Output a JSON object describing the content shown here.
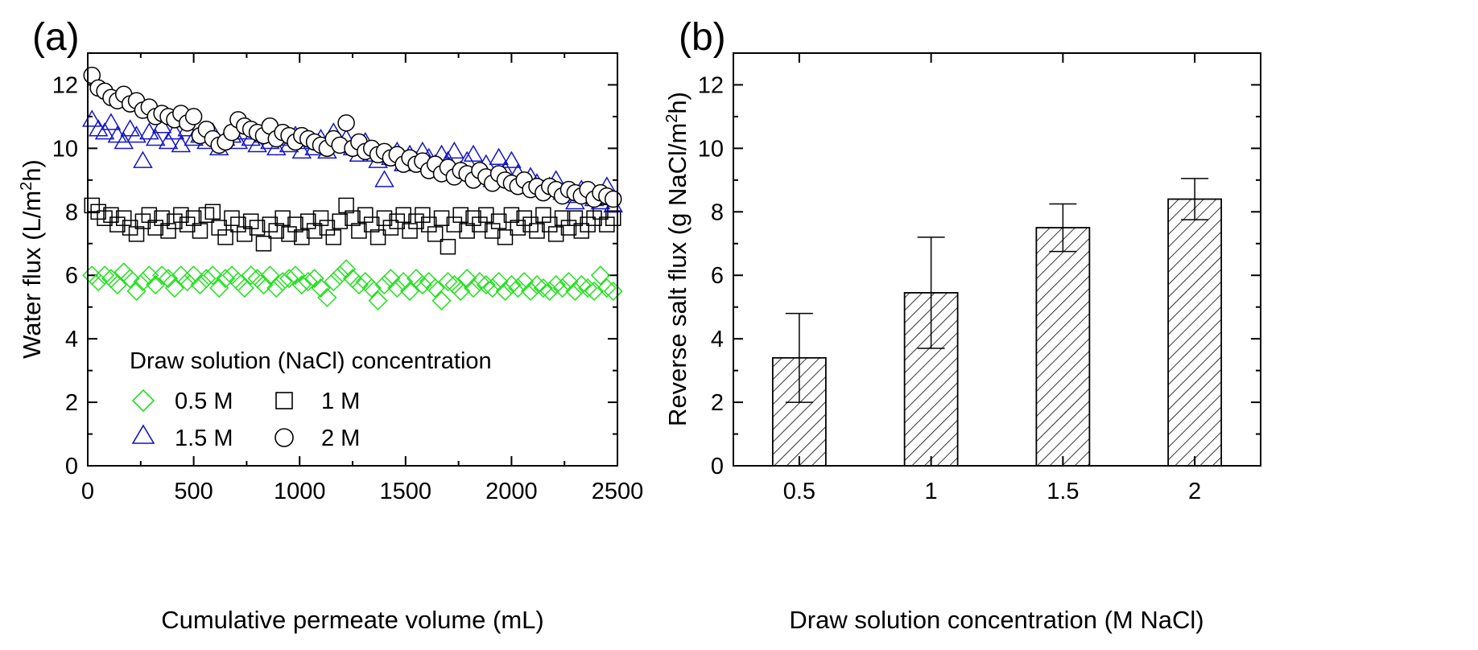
{
  "chart_data": [
    {
      "panel_label": "(a)",
      "type": "scatter",
      "xlabel": "Cumulative permeate volume (mL)",
      "ylabel": {
        "main": "Water flux (L/m",
        "sup": "2",
        "end": "h)"
      },
      "xlim": [
        0,
        2500
      ],
      "ylim": [
        0,
        13
      ],
      "xticks": [
        0,
        500,
        1000,
        1500,
        2000,
        2500
      ],
      "yticks": [
        0,
        2,
        4,
        6,
        8,
        10,
        12
      ],
      "legend": {
        "title": "Draw solution (NaCl) concentration",
        "placement": "bottom-left"
      },
      "colors": {
        "0.5 M": "#22e01e",
        "1 M": "#000000",
        "1.5 M": "#1414c8",
        "2 M": "#000000"
      },
      "markers": {
        "0.5 M": "diamond",
        "1 M": "square",
        "1.5 M": "triangle",
        "2 M": "circle"
      },
      "series": [
        {
          "name": "0.5 M",
          "x": [
            20,
            50,
            80,
            110,
            140,
            170,
            200,
            230,
            260,
            290,
            320,
            350,
            380,
            410,
            440,
            470,
            500,
            530,
            560,
            590,
            620,
            650,
            680,
            710,
            740,
            770,
            800,
            830,
            860,
            890,
            920,
            950,
            980,
            1010,
            1040,
            1070,
            1100,
            1130,
            1160,
            1190,
            1220,
            1250,
            1280,
            1310,
            1340,
            1370,
            1400,
            1430,
            1460,
            1490,
            1520,
            1550,
            1580,
            1610,
            1640,
            1670,
            1700,
            1730,
            1760,
            1790,
            1820,
            1850,
            1880,
            1910,
            1940,
            1970,
            2000,
            2030,
            2060,
            2090,
            2120,
            2150,
            2180,
            2210,
            2240,
            2270,
            2300,
            2330,
            2360,
            2390,
            2420,
            2450,
            2480
          ],
          "y": [
            6.0,
            5.8,
            6.0,
            5.9,
            5.7,
            6.1,
            5.9,
            5.5,
            5.8,
            6.0,
            5.7,
            6.0,
            5.9,
            5.6,
            6.0,
            5.8,
            6.0,
            5.7,
            5.9,
            6.0,
            5.6,
            5.9,
            6.0,
            5.8,
            5.6,
            6.0,
            5.9,
            5.7,
            6.0,
            5.6,
            5.8,
            5.9,
            6.0,
            5.7,
            5.8,
            5.9,
            5.6,
            5.3,
            5.8,
            6.0,
            6.2,
            5.9,
            5.7,
            5.8,
            5.6,
            5.2,
            5.7,
            5.9,
            5.6,
            5.8,
            5.5,
            5.9,
            5.7,
            5.8,
            5.6,
            5.2,
            5.8,
            5.7,
            5.5,
            5.9,
            5.6,
            5.8,
            5.7,
            5.6,
            5.8,
            5.5,
            5.7,
            5.6,
            5.8,
            5.5,
            5.7,
            5.6,
            5.5,
            5.7,
            5.6,
            5.8,
            5.5,
            5.7,
            5.6,
            5.5,
            6.0,
            5.6,
            5.5
          ]
        },
        {
          "name": "1 M",
          "x": [
            20,
            50,
            80,
            110,
            140,
            170,
            200,
            230,
            260,
            290,
            320,
            350,
            380,
            410,
            440,
            470,
            500,
            530,
            560,
            590,
            620,
            650,
            680,
            710,
            740,
            770,
            800,
            830,
            860,
            890,
            920,
            950,
            980,
            1010,
            1040,
            1070,
            1100,
            1130,
            1160,
            1190,
            1220,
            1250,
            1280,
            1310,
            1340,
            1370,
            1400,
            1430,
            1460,
            1490,
            1520,
            1550,
            1580,
            1610,
            1640,
            1670,
            1700,
            1730,
            1760,
            1790,
            1820,
            1850,
            1880,
            1910,
            1940,
            1970,
            2000,
            2030,
            2060,
            2090,
            2120,
            2150,
            2180,
            2210,
            2240,
            2270,
            2300,
            2330,
            2360,
            2390,
            2420,
            2450,
            2480
          ],
          "y": [
            8.2,
            8.0,
            7.8,
            7.9,
            7.6,
            7.8,
            7.5,
            7.3,
            7.7,
            7.9,
            7.5,
            7.8,
            7.4,
            7.7,
            7.9,
            7.6,
            7.8,
            7.4,
            7.9,
            8.0,
            7.5,
            7.2,
            7.8,
            7.6,
            7.3,
            7.7,
            7.5,
            7.0,
            7.6,
            7.4,
            7.8,
            7.3,
            7.6,
            7.2,
            7.7,
            7.4,
            7.8,
            7.5,
            7.2,
            7.7,
            8.2,
            7.8,
            7.4,
            7.9,
            7.6,
            7.2,
            7.8,
            7.5,
            7.7,
            7.9,
            7.4,
            7.7,
            7.9,
            7.6,
            7.3,
            7.8,
            6.9,
            7.6,
            7.9,
            7.4,
            7.8,
            7.6,
            7.9,
            7.4,
            7.7,
            7.2,
            7.9,
            7.5,
            7.8,
            7.6,
            7.4,
            7.9,
            7.6,
            7.3,
            7.8,
            7.5,
            7.8,
            7.4,
            7.6,
            7.8,
            8.0,
            7.6,
            7.8
          ]
        },
        {
          "name": "1.5 M",
          "x": [
            20,
            50,
            80,
            110,
            140,
            170,
            200,
            230,
            260,
            290,
            320,
            350,
            380,
            410,
            440,
            470,
            500,
            530,
            560,
            590,
            620,
            650,
            680,
            710,
            740,
            770,
            800,
            830,
            860,
            890,
            920,
            950,
            980,
            1010,
            1040,
            1070,
            1100,
            1130,
            1160,
            1190,
            1220,
            1250,
            1280,
            1310,
            1340,
            1370,
            1400,
            1430,
            1460,
            1490,
            1520,
            1550,
            1580,
            1610,
            1640,
            1670,
            1700,
            1730,
            1760,
            1790,
            1820,
            1850,
            1880,
            1910,
            1940,
            1970,
            2000,
            2030,
            2060,
            2090,
            2120,
            2150,
            2180,
            2210,
            2240,
            2270,
            2300,
            2330,
            2360,
            2390,
            2420,
            2450,
            2480
          ],
          "y": [
            10.9,
            10.6,
            10.5,
            10.8,
            10.4,
            10.2,
            10.6,
            10.4,
            9.6,
            10.5,
            10.3,
            10.7,
            10.2,
            10.5,
            10.1,
            10.6,
            10.3,
            10.4,
            10.2,
            10.5,
            10.0,
            10.3,
            10.4,
            10.2,
            10.5,
            10.3,
            10.1,
            10.4,
            10.2,
            10.0,
            10.3,
            10.1,
            10.4,
            9.9,
            10.2,
            10.0,
            10.3,
            9.9,
            10.5,
            10.1,
            10.3,
            10.0,
            9.8,
            10.2,
            9.8,
            9.6,
            9.0,
            9.7,
            9.9,
            9.5,
            9.8,
            9.6,
            9.9,
            9.7,
            9.5,
            9.8,
            9.6,
            9.9,
            9.3,
            9.6,
            9.8,
            9.1,
            9.5,
            9.0,
            9.7,
            9.3,
            9.6,
            9.2,
            8.9,
            9.1,
            8.9,
            8.7,
            8.8,
            9.0,
            8.6,
            8.5,
            8.3,
            8.7,
            8.6,
            8.4,
            8.3,
            8.8,
            8.2
          ]
        },
        {
          "name": "2 M",
          "x": [
            20,
            50,
            80,
            110,
            140,
            170,
            200,
            230,
            260,
            290,
            320,
            350,
            380,
            410,
            440,
            470,
            500,
            530,
            560,
            590,
            620,
            650,
            680,
            710,
            740,
            770,
            800,
            830,
            860,
            890,
            920,
            950,
            980,
            1010,
            1040,
            1070,
            1100,
            1130,
            1160,
            1190,
            1220,
            1250,
            1280,
            1310,
            1340,
            1370,
            1400,
            1430,
            1460,
            1490,
            1520,
            1550,
            1580,
            1610,
            1640,
            1670,
            1700,
            1730,
            1760,
            1790,
            1820,
            1850,
            1880,
            1910,
            1940,
            1970,
            2000,
            2030,
            2060,
            2090,
            2120,
            2150,
            2180,
            2210,
            2240,
            2270,
            2300,
            2330,
            2360,
            2390,
            2420,
            2450,
            2480
          ],
          "y": [
            12.3,
            11.9,
            11.8,
            11.6,
            11.5,
            11.7,
            11.4,
            11.5,
            11.2,
            11.3,
            11.0,
            11.1,
            11.0,
            10.9,
            11.1,
            10.8,
            11.0,
            10.4,
            10.6,
            10.3,
            10.1,
            10.2,
            10.5,
            10.9,
            10.7,
            10.6,
            10.5,
            10.4,
            10.7,
            10.3,
            10.5,
            10.4,
            10.2,
            10.4,
            10.3,
            10.2,
            10.1,
            10.0,
            10.3,
            10.1,
            10.8,
            10.0,
            10.2,
            9.9,
            10.0,
            9.8,
            9.9,
            9.7,
            9.8,
            9.5,
            9.7,
            9.5,
            9.6,
            9.3,
            9.5,
            9.2,
            9.4,
            9.1,
            9.3,
            9.2,
            9.0,
            9.3,
            9.1,
            8.9,
            9.2,
            9.0,
            8.9,
            8.8,
            9.0,
            8.7,
            8.8,
            8.6,
            8.8,
            8.7,
            8.5,
            8.7,
            8.6,
            8.5,
            8.7,
            8.4,
            8.6,
            8.5,
            8.4
          ]
        }
      ]
    },
    {
      "panel_label": "(b)",
      "type": "bar",
      "xlabel": "Draw solution concentration (M NaCl)",
      "ylabel": {
        "main": "Reverse salt flux (g NaCl/m",
        "sup": "2",
        "end": "h)"
      },
      "categories": [
        "0.5",
        "1",
        "1.5",
        "2"
      ],
      "values": [
        3.4,
        5.45,
        7.5,
        8.4
      ],
      "errors": [
        1.4,
        1.75,
        0.75,
        0.65
      ],
      "ylim": [
        0,
        13
      ],
      "yticks": [
        0,
        2,
        4,
        6,
        8,
        10,
        12
      ],
      "fill": "hatched",
      "color": "#000000"
    }
  ]
}
